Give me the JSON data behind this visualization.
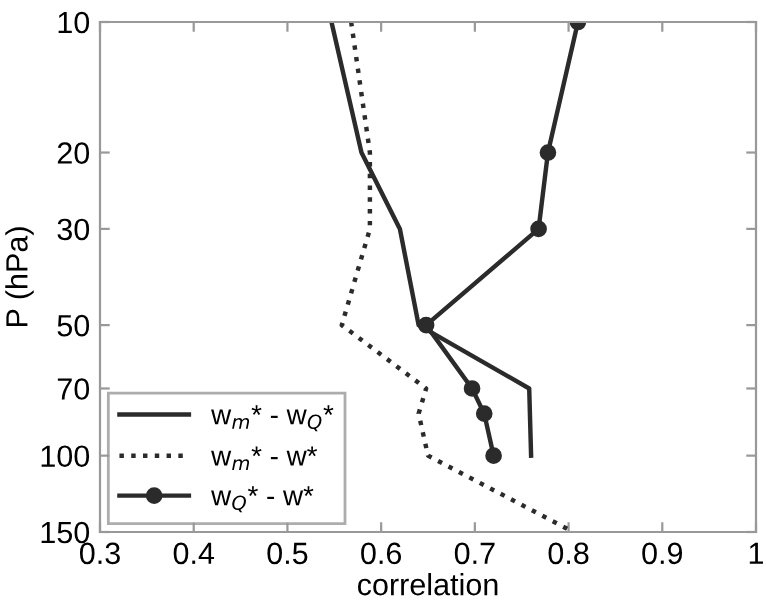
{
  "chart_data": {
    "type": "line",
    "xlabel": "correlation",
    "ylabel": "P (hPa)",
    "log": "y",
    "grid": false,
    "legend": "bottom left",
    "xlim": [
      0.3,
      1
    ],
    "xticks": [
      0.3,
      0.4,
      0.5,
      0.6,
      0.7,
      0.8,
      0.9,
      {
        "value": 1,
        "label": "1"
      }
    ],
    "ylim": [
      150,
      10
    ],
    "yticks": [
      10,
      20,
      30,
      50,
      70,
      100,
      150
    ],
    "series": [
      {
        "name": "w$_{m}$* - w$_{Q}$*",
        "color": "#2b2b2b",
        "line_style": "solid",
        "marker": "none",
        "x": [
          0.547,
          0.579,
          0.62,
          0.64,
          0.758,
          0.76
        ],
        "values": [
          10,
          20,
          30,
          50,
          70,
          100
        ]
      },
      {
        "name": "w$_{m}$* - w*",
        "color": "#2b2b2b",
        "line_style": "dotted",
        "marker": "none",
        "x": [
          0.568,
          0.588,
          0.588,
          0.558,
          0.648,
          0.64,
          0.65,
          0.805
        ],
        "values": [
          10,
          20,
          30,
          50,
          70,
          80,
          100,
          150
        ]
      },
      {
        "name": "w$_{Q}$* - w*",
        "color": "#2b2b2b",
        "line_style": "solid",
        "marker": "circle",
        "x": [
          0.81,
          0.778,
          0.768,
          0.648,
          0.697,
          0.71,
          0.72
        ],
        "values": [
          10,
          20,
          30,
          50,
          70,
          80,
          100
        ]
      }
    ]
  }
}
